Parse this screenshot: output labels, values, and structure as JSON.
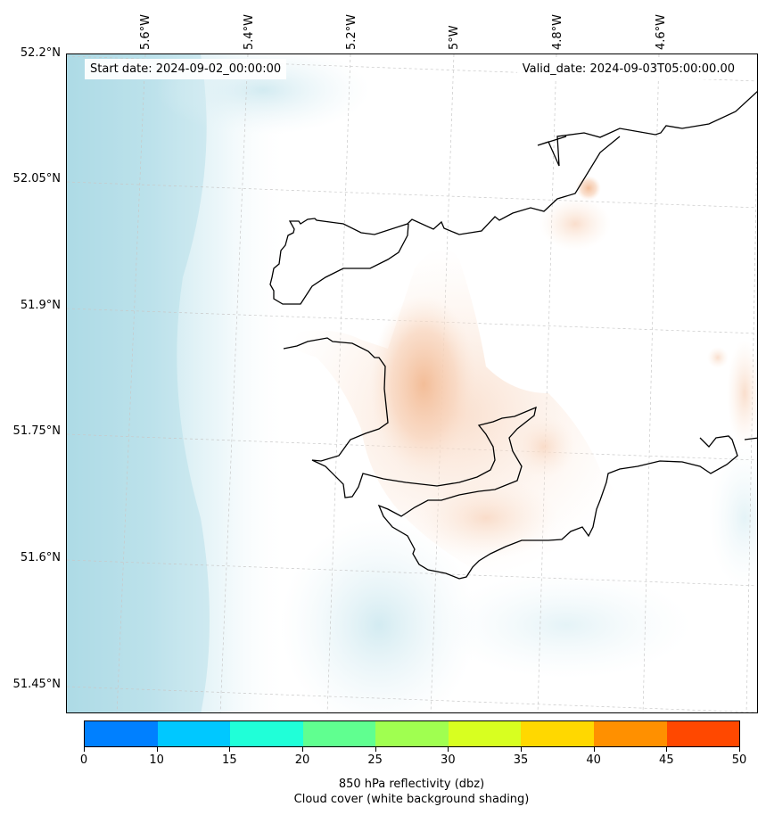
{
  "header": {
    "start_date": "Start date: 2024-09-02_00:00:00",
    "valid_date": "Valid_date: 2024-09-03T05:00:00.00"
  },
  "lat_labels": [
    "52.2°N",
    "52.05°N",
    "51.9°N",
    "51.75°N",
    "51.6°N",
    "51.45°N"
  ],
  "lon_labels": [
    "5.6°W",
    "5.4°W",
    "5.2°W",
    "5°W",
    "4.8°W",
    "4.6°W"
  ],
  "colorbar": {
    "label": "850 hPa reflectivity (dbz)",
    "sublabel": "Cloud cover (white background shading)",
    "ticks": [
      "0",
      "10",
      "15",
      "20",
      "25",
      "30",
      "35",
      "40",
      "45",
      "50"
    ],
    "colors": [
      "#0080ff",
      "#00c8ff",
      "#20ffd8",
      "#60ff90",
      "#a0ff50",
      "#d8ff20",
      "#ffd800",
      "#ff9000",
      "#ff4800"
    ]
  },
  "colors": {
    "cloud": "#a8d8e4",
    "reflectivity_weak": "#f6c8a8",
    "coastline": "#000000"
  }
}
